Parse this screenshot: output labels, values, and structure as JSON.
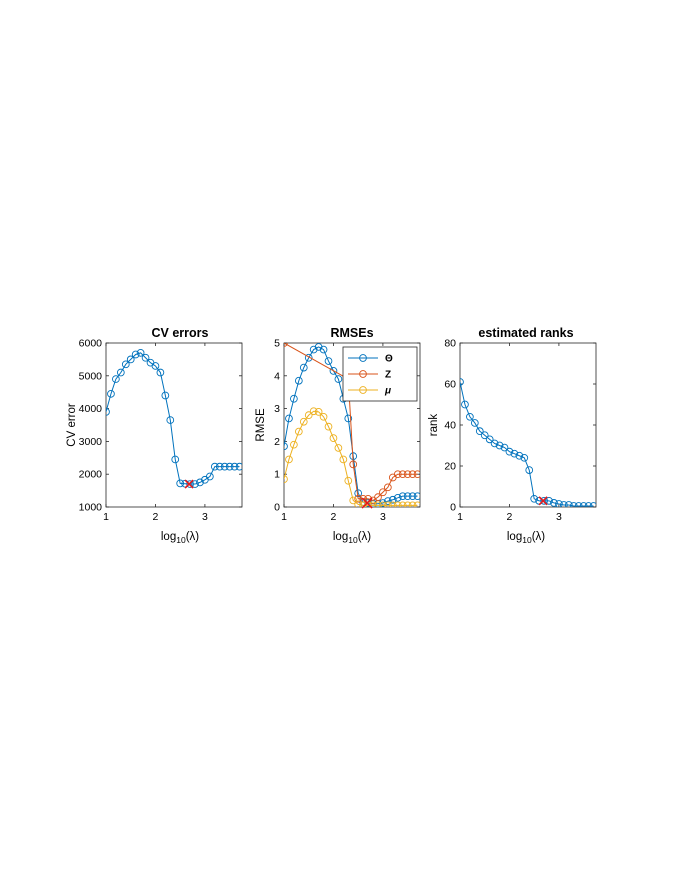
{
  "colors": {
    "blue": "#0072BD",
    "orange": "#D95319",
    "yellow": "#EDB120",
    "red_mark": "#E41A1C",
    "axis": "#262626"
  },
  "chart_data": [
    {
      "id": "cv",
      "type": "line",
      "title": "CV errors",
      "xlabel": "log",
      "xlabel_sub": "10",
      "xlabel_arg": "(λ)",
      "ylabel": "CV error",
      "xlim": [
        1,
        3.75
      ],
      "ylim": [
        1000,
        6000
      ],
      "xticks": [
        1,
        2,
        3
      ],
      "xtick_labels": [
        "1",
        "2",
        "3"
      ],
      "yticks": [
        1000,
        2000,
        3000,
        4000,
        5000,
        6000
      ],
      "ytick_labels": [
        "1000",
        "2000",
        "3000",
        "4000",
        "5000",
        "6000"
      ],
      "marker_style": "circle",
      "series": [
        {
          "color_key": "blue",
          "x": [
            1.0,
            1.1,
            1.2,
            1.3,
            1.4,
            1.5,
            1.6,
            1.7,
            1.8,
            1.9,
            2.0,
            2.1,
            2.2,
            2.3,
            2.4,
            2.5,
            2.6,
            2.7,
            2.8,
            2.9,
            3.0,
            3.1,
            3.2,
            3.3,
            3.4,
            3.5,
            3.6,
            3.7
          ],
          "y": [
            3900,
            4450,
            4900,
            5100,
            5350,
            5500,
            5650,
            5700,
            5550,
            5400,
            5300,
            5100,
            4400,
            3650,
            2450,
            1720,
            1710,
            1700,
            1700,
            1750,
            1830,
            1930,
            2230,
            2230,
            2230,
            2230,
            2230,
            2230
          ]
        }
      ],
      "best": {
        "x": 2.68,
        "y": 1700
      }
    },
    {
      "id": "rmse",
      "type": "line",
      "title": "RMSEs",
      "xlabel": "log",
      "xlabel_sub": "10",
      "xlabel_arg": "(λ)",
      "ylabel": "RMSE",
      "xlim": [
        1,
        3.75
      ],
      "ylim": [
        0,
        5
      ],
      "xticks": [
        1,
        2,
        3
      ],
      "xtick_labels": [
        "1",
        "2",
        "3"
      ],
      "yticks": [
        0,
        1,
        2,
        3,
        4,
        5
      ],
      "ytick_labels": [
        "0",
        "1",
        "2",
        "3",
        "4",
        "5"
      ],
      "marker_style": "circle",
      "legend_position": "top-right",
      "series": [
        {
          "name": "Θ",
          "color_key": "blue",
          "x": [
            1.0,
            1.1,
            1.2,
            1.3,
            1.4,
            1.5,
            1.6,
            1.7,
            1.8,
            1.9,
            2.0,
            2.1,
            2.2,
            2.3,
            2.4,
            2.5,
            2.6,
            2.7,
            2.8,
            2.9,
            3.0,
            3.1,
            3.2,
            3.3,
            3.4,
            3.5,
            3.6,
            3.7
          ],
          "y": [
            1.85,
            2.7,
            3.3,
            3.85,
            4.25,
            4.55,
            4.8,
            4.88,
            4.8,
            4.45,
            4.15,
            3.9,
            3.3,
            2.7,
            1.55,
            0.42,
            0.15,
            0.12,
            0.1,
            0.1,
            0.12,
            0.18,
            0.22,
            0.28,
            0.33,
            0.33,
            0.33,
            0.33
          ]
        },
        {
          "name": "Z",
          "color_key": "orange",
          "x": [
            1.0,
            2.3,
            2.4,
            2.5,
            2.6,
            2.7,
            2.8,
            2.9,
            3.0,
            3.1,
            3.2,
            3.3,
            3.4,
            3.5,
            3.6,
            3.7
          ],
          "y": [
            5.0,
            3.9,
            1.3,
            0.25,
            0.25,
            0.25,
            0.2,
            0.3,
            0.45,
            0.6,
            0.9,
            1.0,
            1.0,
            1.0,
            1.0,
            1.0
          ]
        },
        {
          "name": "μ",
          "color_key": "yellow",
          "x": [
            1.0,
            1.1,
            1.2,
            1.3,
            1.4,
            1.5,
            1.6,
            1.7,
            1.8,
            1.9,
            2.0,
            2.1,
            2.2,
            2.3,
            2.4,
            2.5,
            2.6,
            2.7,
            2.8,
            2.9,
            3.0,
            3.1,
            3.2,
            3.3,
            3.4,
            3.5,
            3.6,
            3.7
          ],
          "y": [
            0.85,
            1.45,
            1.9,
            2.3,
            2.6,
            2.8,
            2.92,
            2.9,
            2.75,
            2.45,
            2.1,
            1.8,
            1.45,
            0.8,
            0.2,
            0.08,
            0.05,
            0.05,
            0.05,
            0.05,
            0.05,
            0.05,
            0.05,
            0.05,
            0.05,
            0.05,
            0.05,
            0.05
          ]
        }
      ],
      "best": {
        "x": 2.68,
        "y": 0.12
      },
      "legend": [
        "Θ",
        "Z",
        "μ"
      ]
    },
    {
      "id": "rank",
      "type": "line",
      "title": "estimated ranks",
      "xlabel": "log",
      "xlabel_sub": "10",
      "xlabel_arg": "(λ)",
      "ylabel": "rank",
      "xlim": [
        1,
        3.75
      ],
      "ylim": [
        0,
        80
      ],
      "xticks": [
        1,
        2,
        3
      ],
      "xtick_labels": [
        "1",
        "2",
        "3"
      ],
      "yticks": [
        0,
        20,
        40,
        60,
        80
      ],
      "ytick_labels": [
        "0",
        "20",
        "40",
        "60",
        "80"
      ],
      "marker_style": "circle",
      "series": [
        {
          "color_key": "blue",
          "x": [
            1.0,
            1.1,
            1.2,
            1.3,
            1.4,
            1.5,
            1.6,
            1.7,
            1.8,
            1.9,
            2.0,
            2.1,
            2.2,
            2.3,
            2.4,
            2.5,
            2.6,
            2.7,
            2.8,
            2.9,
            3.0,
            3.1,
            3.2,
            3.3,
            3.4,
            3.5,
            3.6,
            3.7
          ],
          "y": [
            61,
            50,
            44,
            41,
            37,
            35,
            33,
            31,
            30,
            29,
            27,
            26,
            25,
            24,
            18,
            4,
            3,
            3,
            3,
            2,
            1.5,
            1,
            1,
            0.5,
            0.5,
            0.5,
            0.5,
            0.5
          ]
        }
      ],
      "best": {
        "x": 2.68,
        "y": 3
      }
    }
  ]
}
